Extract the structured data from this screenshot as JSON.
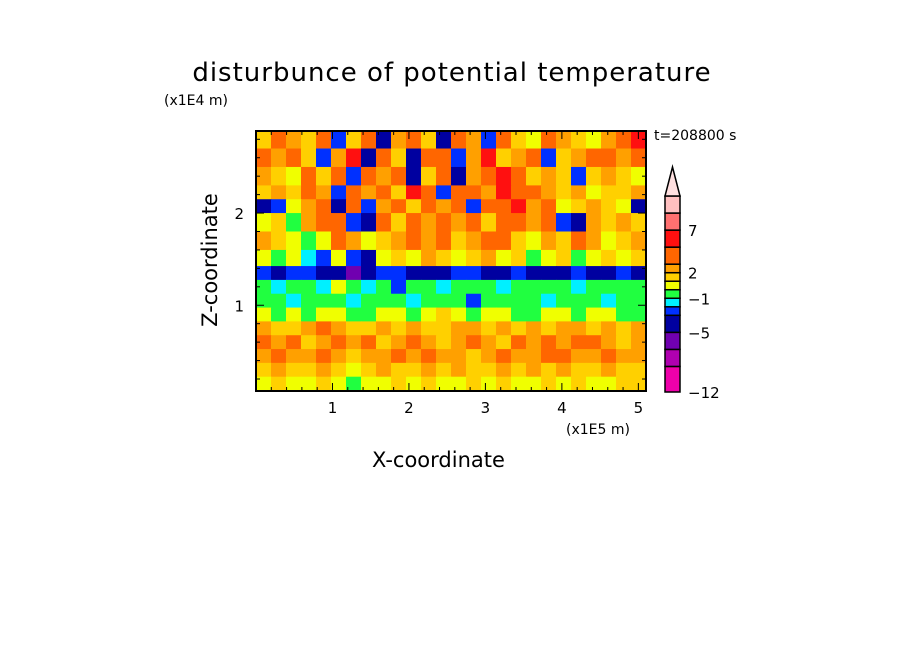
{
  "chart_data": {
    "type": "heatmap",
    "title": "disturbunce of potential temperature",
    "xlabel": "X-coordinate",
    "ylabel": "Z-coordinate",
    "x_unit": "(x1E5 m)",
    "y_unit": "(x1E4 m)",
    "time_label": "t=208800 s",
    "xlim": [
      0,
      5.1
    ],
    "ylim": [
      0.07,
      2.89
    ],
    "x_ticks": [
      1,
      2,
      3,
      4,
      5
    ],
    "y_ticks": [
      1,
      2
    ],
    "colorbar": {
      "levels": [
        -12,
        -9,
        -7,
        -5,
        -3,
        -2,
        -1,
        0,
        1,
        2,
        3,
        5,
        7,
        9,
        11
      ],
      "tick_labels": [
        "7",
        "2",
        "-1",
        "-5",
        "-12"
      ],
      "tick_values": [
        7,
        2,
        -1,
        -5,
        -12
      ],
      "colors": [
        "#ee00aa",
        "#b000b0",
        "#7000b0",
        "#0000a0",
        "#0030ff",
        "#00f0ff",
        "#20ff40",
        "#f0ff00",
        "#ffd000",
        "#ffa000",
        "#ff6600",
        "#ff1010",
        "#ff7070",
        "#ffc0c0",
        "#ffe0e0"
      ],
      "extend": "max"
    },
    "z_rows": [
      2.8,
      2.6,
      2.4,
      2.2,
      2.1,
      1.9,
      1.7,
      1.5,
      1.35,
      1.2,
      1.05,
      0.9,
      0.75,
      0.6,
      0.45,
      0.3,
      0.15
    ],
    "values": [
      [
        1,
        3,
        2,
        1,
        4,
        -3,
        1,
        3,
        -5,
        2,
        4,
        1,
        -5,
        3,
        2,
        -3,
        4,
        1,
        0,
        3,
        2,
        1,
        0,
        2,
        3,
        5
      ],
      [
        3,
        2,
        4,
        1,
        -3,
        2,
        5,
        -5,
        3,
        1,
        -5,
        3,
        4,
        -3,
        2,
        5,
        1,
        2,
        3,
        -3,
        1,
        2,
        3,
        4,
        2,
        4
      ],
      [
        2,
        1,
        0,
        3,
        1,
        4,
        -3,
        3,
        2,
        4,
        -5,
        1,
        3,
        -5,
        2,
        4,
        5,
        3,
        1,
        2,
        1,
        -3,
        1,
        2,
        1,
        0
      ],
      [
        1,
        2,
        1,
        3,
        2,
        -3,
        4,
        2,
        3,
        1,
        5,
        3,
        -3,
        4,
        3,
        2,
        5,
        3,
        4,
        2,
        1,
        2,
        0,
        1,
        1,
        2
      ],
      [
        -5,
        -3,
        0,
        2,
        4,
        -5,
        3,
        -3,
        2,
        3,
        1,
        4,
        2,
        3,
        -3,
        4,
        3,
        5,
        2,
        3,
        0,
        1,
        2,
        1,
        0,
        -5
      ],
      [
        0,
        1,
        -1,
        2,
        3,
        4,
        -3,
        -5,
        3,
        1,
        4,
        2,
        3,
        2,
        4,
        1,
        3,
        4,
        2,
        3,
        -3,
        -5,
        2,
        1,
        2,
        1
      ],
      [
        2,
        1,
        0,
        -1,
        0,
        3,
        2,
        0,
        1,
        2,
        4,
        2,
        3,
        1,
        2,
        3,
        4,
        1,
        0,
        2,
        1,
        3,
        2,
        0,
        1,
        2
      ],
      [
        0,
        -1,
        0,
        -2,
        -3,
        0,
        -3,
        -5,
        0,
        1,
        0,
        2,
        1,
        0,
        1,
        2,
        0,
        1,
        -1,
        0,
        1,
        -1,
        0,
        1,
        0,
        1
      ],
      [
        -3,
        -5,
        -3,
        -3,
        -5,
        -5,
        -7,
        -5,
        -3,
        -3,
        -5,
        -5,
        -5,
        -3,
        -3,
        -5,
        -5,
        -3,
        -5,
        -5,
        -5,
        -3,
        -5,
        -5,
        -3,
        -5
      ],
      [
        -1,
        -2,
        -1,
        -1,
        -2,
        0,
        -1,
        -2,
        -1,
        -3,
        -1,
        -1,
        -2,
        -1,
        -1,
        -1,
        -2,
        -1,
        -1,
        -1,
        -1,
        -2,
        -1,
        -1,
        -1,
        -1
      ],
      [
        -1,
        -1,
        -2,
        -1,
        -1,
        -1,
        -2,
        -1,
        -1,
        -1,
        -2,
        -1,
        -1,
        -1,
        -3,
        -1,
        -1,
        -1,
        -1,
        -2,
        -1,
        -1,
        -1,
        -2,
        -1,
        -1
      ],
      [
        0,
        -1,
        0,
        -1,
        0,
        0,
        -1,
        -1,
        0,
        0,
        -1,
        0,
        1,
        0,
        -1,
        0,
        0,
        -1,
        -1,
        0,
        0,
        -1,
        0,
        0,
        -1,
        -1
      ],
      [
        2,
        1,
        1,
        2,
        3,
        2,
        1,
        1,
        2,
        1,
        2,
        1,
        1,
        2,
        2,
        1,
        2,
        1,
        2,
        1,
        2,
        2,
        1,
        2,
        1,
        2
      ],
      [
        3,
        2,
        3,
        1,
        2,
        3,
        2,
        3,
        1,
        2,
        3,
        2,
        1,
        2,
        3,
        2,
        1,
        3,
        2,
        3,
        2,
        3,
        3,
        2,
        1,
        2
      ],
      [
        2,
        3,
        2,
        2,
        3,
        2,
        1,
        2,
        2,
        3,
        2,
        3,
        2,
        2,
        1,
        2,
        3,
        2,
        2,
        3,
        3,
        2,
        2,
        3,
        2,
        2
      ],
      [
        1,
        2,
        1,
        1,
        2,
        1,
        0,
        1,
        2,
        1,
        1,
        2,
        1,
        2,
        1,
        1,
        2,
        1,
        2,
        1,
        2,
        1,
        1,
        2,
        1,
        1
      ],
      [
        0,
        1,
        0,
        0,
        1,
        0,
        -1,
        0,
        0,
        1,
        0,
        1,
        0,
        0,
        1,
        0,
        1,
        0,
        0,
        1,
        0,
        1,
        0,
        0,
        1,
        1
      ]
    ]
  }
}
